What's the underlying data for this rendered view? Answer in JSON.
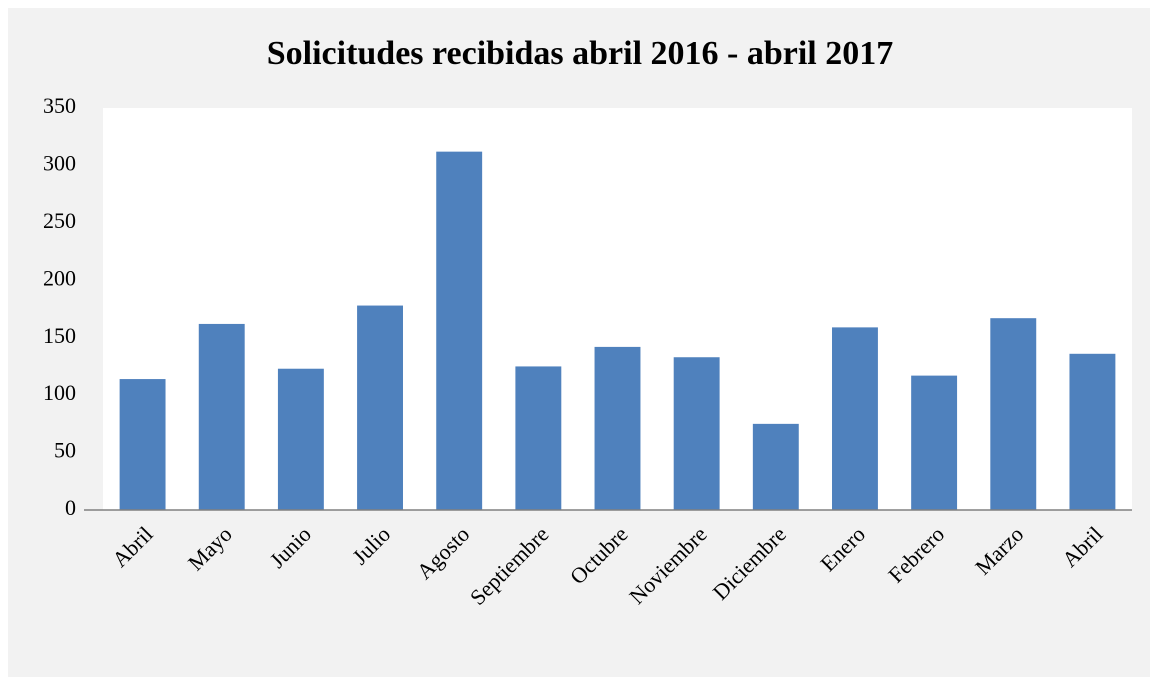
{
  "chart_data": {
    "type": "bar",
    "title": "Solicitudes recibidas abril 2016 - abril 2017",
    "categories": [
      "Abril",
      "Mayo",
      "Junio",
      "Julio",
      "Agosto",
      "Septiembre",
      "Octubre",
      "Noviembre",
      "Diciembre",
      "Enero",
      "Febrero",
      "Marzo",
      "Abril"
    ],
    "values": [
      114,
      162,
      123,
      178,
      312,
      125,
      142,
      133,
      75,
      159,
      117,
      167,
      136
    ],
    "color": "#4f81bd",
    "ylim": [
      0,
      350
    ],
    "yticks": [
      0,
      50,
      100,
      150,
      200,
      250,
      300,
      350
    ],
    "grid": false
  }
}
